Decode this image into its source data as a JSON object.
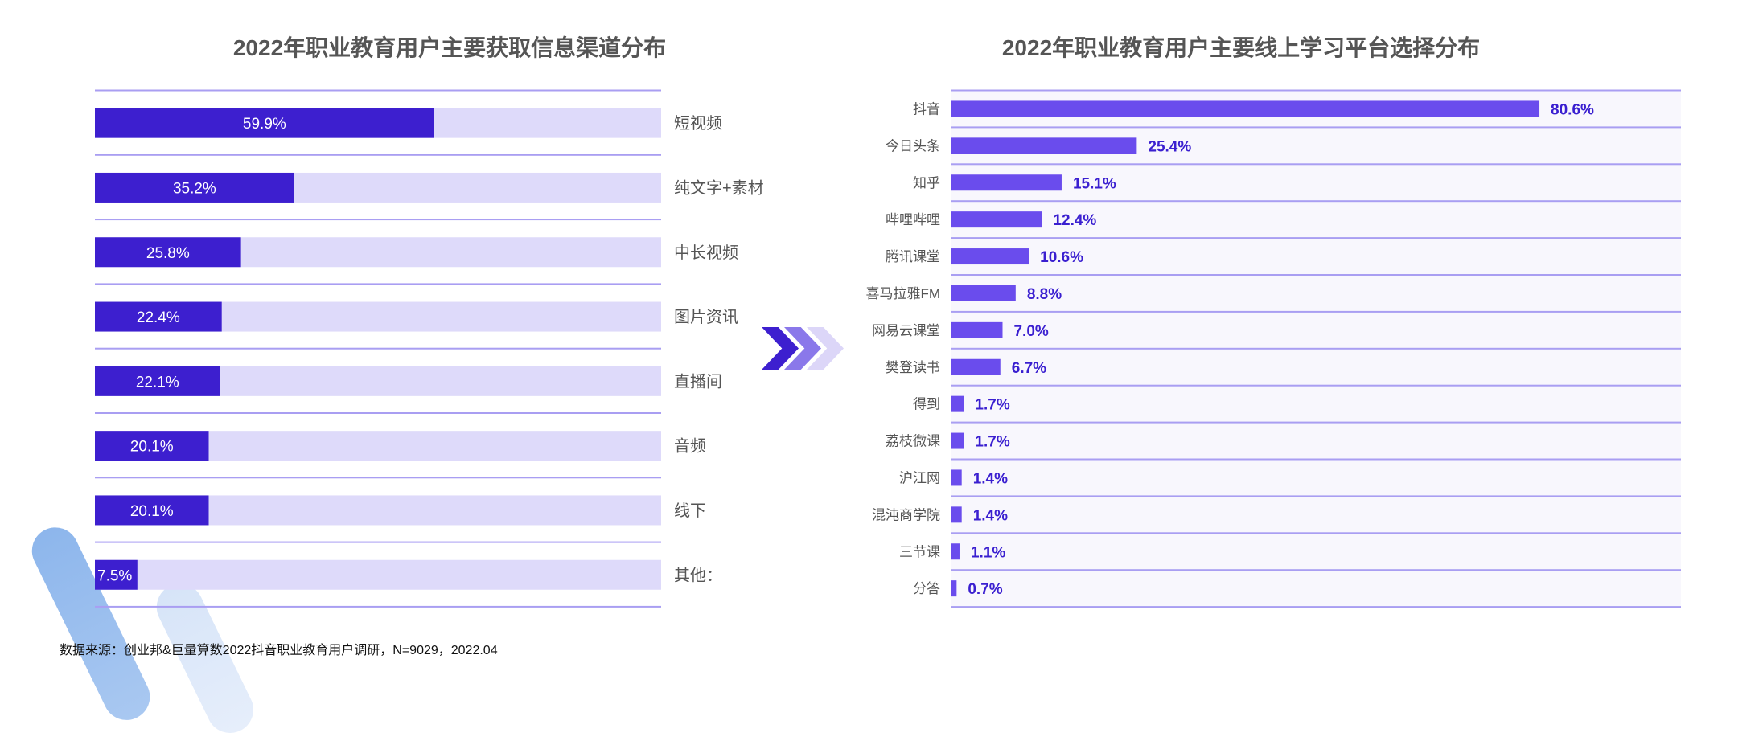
{
  "colors": {
    "left_fill": "#3d1fcf",
    "left_track": "#dedafa",
    "separator": "#a99ef2",
    "right_bar": "#6a4ced",
    "right_bg": "#f8f7fd",
    "right_value": "#3a1fd0",
    "chevrons": [
      "#3d1fcf",
      "#8a78ea",
      "#dcd6f8"
    ]
  },
  "footnote": "数据来源：创业邦&巨量算数2022抖音职业教育用户调研，N=9029，2022.04",
  "chart_data": [
    {
      "type": "bar",
      "orientation": "horizontal",
      "title": "2022年职业教育用户主要获取信息渠道分布",
      "categories": [
        "短视频",
        "纯文字+素材",
        "中长视频",
        "图片资讯",
        "直播间",
        "音频",
        "线下",
        "其他："
      ],
      "values": [
        59.9,
        35.2,
        25.8,
        22.4,
        22.1,
        20.1,
        20.1,
        7.5
      ],
      "value_labels": [
        "59.9%",
        "35.2%",
        "25.8%",
        "22.4%",
        "22.1%",
        "20.1%",
        "20.1%",
        "7.5%"
      ],
      "unit": "%",
      "xlim": [
        0,
        100
      ],
      "category_label_position": "right"
    },
    {
      "type": "bar",
      "orientation": "horizontal",
      "title": "2022年职业教育用户主要线上学习平台选择分布",
      "categories": [
        "抖音",
        "今日头条",
        "知乎",
        "哔哩哔哩",
        "腾讯课堂",
        "喜马拉雅FM",
        "网易云课堂",
        "樊登读书",
        "得到",
        "荔枝微课",
        "沪江网",
        "混沌商学院",
        "三节课",
        "分答"
      ],
      "values": [
        80.6,
        25.4,
        15.1,
        12.4,
        10.6,
        8.8,
        7.0,
        6.7,
        1.7,
        1.7,
        1.4,
        1.4,
        1.1,
        0.7
      ],
      "value_labels": [
        "80.6%",
        "25.4%",
        "15.1%",
        "12.4%",
        "10.6%",
        "8.8%",
        "7.0%",
        "6.7%",
        "1.7%",
        "1.7%",
        "1.4%",
        "1.4%",
        "1.1%",
        "0.7%"
      ],
      "unit": "%",
      "xlim": [
        0,
        100
      ],
      "category_label_position": "left"
    }
  ]
}
